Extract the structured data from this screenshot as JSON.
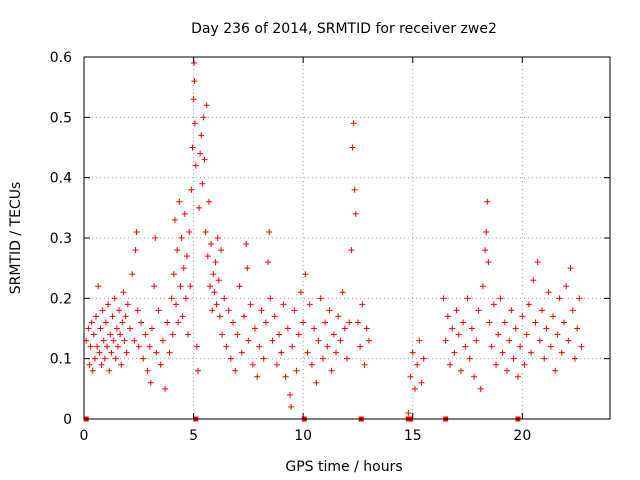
{
  "chart_data": {
    "type": "scatter",
    "title": "Day 236 of 2014, SRMTID for receiver zwe2",
    "xlabel": "GPS time / hours",
    "ylabel": "SRMTID / TECUs",
    "xlim": [
      0,
      24
    ],
    "ylim": [
      0,
      0.6
    ],
    "xticks": [
      0,
      5,
      10,
      15,
      20
    ],
    "xtick_labels": [
      "0",
      "5",
      "10",
      "15",
      "20"
    ],
    "yticks": [
      0,
      0.1,
      0.2,
      0.3,
      0.4,
      0.5,
      0.6
    ],
    "ytick_labels": [
      "0",
      "0.1",
      "0.2",
      "0.3",
      "0.4",
      "0.5",
      "0.6"
    ],
    "grid": true,
    "marker": "+",
    "color": "#ff0000",
    "series": [
      {
        "name": "SRMTID",
        "points": [
          [
            0.1,
            0.13
          ],
          [
            0.2,
            0.15
          ],
          [
            0.25,
            0.09
          ],
          [
            0.3,
            0.12
          ],
          [
            0.35,
            0.16
          ],
          [
            0.4,
            0.08
          ],
          [
            0.45,
            0.14
          ],
          [
            0.5,
            0.1
          ],
          [
            0.55,
            0.17
          ],
          [
            0.6,
            0.12
          ],
          [
            0.65,
            0.22
          ],
          [
            0.7,
            0.11
          ],
          [
            0.75,
            0.15
          ],
          [
            0.8,
            0.09
          ],
          [
            0.85,
            0.18
          ],
          [
            0.9,
            0.13
          ],
          [
            0.95,
            0.1
          ],
          [
            1.0,
            0.16
          ],
          [
            1.05,
            0.12
          ],
          [
            1.1,
            0.19
          ],
          [
            1.15,
            0.08
          ],
          [
            1.2,
            0.14
          ],
          [
            1.25,
            0.11
          ],
          [
            1.3,
            0.17
          ],
          [
            1.35,
            0.13
          ],
          [
            1.4,
            0.2
          ],
          [
            1.45,
            0.1
          ],
          [
            1.5,
            0.15
          ],
          [
            1.55,
            0.12
          ],
          [
            1.6,
            0.18
          ],
          [
            1.65,
            0.14
          ],
          [
            1.7,
            0.09
          ],
          [
            1.75,
            0.16
          ],
          [
            1.8,
            0.21
          ],
          [
            1.85,
            0.13
          ],
          [
            1.9,
            0.17
          ],
          [
            1.95,
            0.11
          ],
          [
            2.0,
            0.19
          ],
          [
            2.1,
            0.15
          ],
          [
            2.2,
            0.24
          ],
          [
            2.3,
            0.13
          ],
          [
            2.35,
            0.28
          ],
          [
            2.4,
            0.31
          ],
          [
            2.45,
            0.18
          ],
          [
            2.5,
            0.12
          ],
          [
            2.6,
            0.16
          ],
          [
            2.7,
            0.1
          ],
          [
            2.8,
            0.14
          ],
          [
            2.9,
            0.08
          ],
          [
            3.0,
            0.12
          ],
          [
            3.05,
            0.06
          ],
          [
            3.1,
            0.15
          ],
          [
            3.2,
            0.22
          ],
          [
            3.25,
            0.3
          ],
          [
            3.3,
            0.11
          ],
          [
            3.4,
            0.18
          ],
          [
            3.5,
            0.09
          ],
          [
            3.6,
            0.13
          ],
          [
            3.7,
            0.05
          ],
          [
            3.8,
            0.16
          ],
          [
            3.9,
            0.11
          ],
          [
            4.0,
            0.2
          ],
          [
            4.05,
            0.14
          ],
          [
            4.1,
            0.24
          ],
          [
            4.15,
            0.33
          ],
          [
            4.2,
            0.19
          ],
          [
            4.25,
            0.28
          ],
          [
            4.3,
            0.16
          ],
          [
            4.35,
            0.36
          ],
          [
            4.4,
            0.22
          ],
          [
            4.45,
            0.3
          ],
          [
            4.5,
            0.17
          ],
          [
            4.55,
            0.25
          ],
          [
            4.6,
            0.34
          ],
          [
            4.65,
            0.2
          ],
          [
            4.7,
            0.27
          ],
          [
            4.75,
            0.14
          ],
          [
            4.8,
            0.31
          ],
          [
            4.85,
            0.22
          ],
          [
            4.9,
            0.38
          ],
          [
            4.95,
            0.45
          ],
          [
            5.0,
            0.53
          ],
          [
            5.02,
            0.59
          ],
          [
            5.04,
            0.56
          ],
          [
            5.06,
            0.49
          ],
          [
            5.1,
            0.42
          ],
          [
            5.15,
            0.12
          ],
          [
            5.2,
            0.08
          ],
          [
            5.25,
            0.35
          ],
          [
            5.3,
            0.44
          ],
          [
            5.35,
            0.47
          ],
          [
            5.4,
            0.39
          ],
          [
            5.45,
            0.5
          ],
          [
            5.5,
            0.43
          ],
          [
            5.55,
            0.31
          ],
          [
            5.6,
            0.52
          ],
          [
            5.65,
            0.27
          ],
          [
            5.7,
            0.36
          ],
          [
            5.75,
            0.22
          ],
          [
            5.8,
            0.29
          ],
          [
            5.85,
            0.18
          ],
          [
            5.9,
            0.24
          ],
          [
            5.95,
            0.21
          ],
          [
            6.0,
            0.26
          ],
          [
            6.05,
            0.19
          ],
          [
            6.1,
            0.3
          ],
          [
            6.15,
            0.23
          ],
          [
            6.2,
            0.17
          ],
          [
            6.25,
            0.28
          ],
          [
            6.3,
            0.14
          ],
          [
            6.4,
            0.2
          ],
          [
            6.5,
            0.12
          ],
          [
            6.6,
            0.18
          ],
          [
            6.7,
            0.1
          ],
          [
            6.8,
            0.16
          ],
          [
            6.9,
            0.08
          ],
          [
            7.0,
            0.14
          ],
          [
            7.1,
            0.22
          ],
          [
            7.2,
            0.11
          ],
          [
            7.3,
            0.17
          ],
          [
            7.4,
            0.29
          ],
          [
            7.45,
            0.25
          ],
          [
            7.5,
            0.13
          ],
          [
            7.6,
            0.19
          ],
          [
            7.7,
            0.09
          ],
          [
            7.8,
            0.15
          ],
          [
            7.9,
            0.07
          ],
          [
            8.0,
            0.12
          ],
          [
            8.1,
            0.18
          ],
          [
            8.2,
            0.1
          ],
          [
            8.3,
            0.16
          ],
          [
            8.4,
            0.26
          ],
          [
            8.45,
            0.31
          ],
          [
            8.5,
            0.2
          ],
          [
            8.6,
            0.13
          ],
          [
            8.7,
            0.17
          ],
          [
            8.8,
            0.09
          ],
          [
            8.9,
            0.14
          ],
          [
            9.0,
            0.11
          ],
          [
            9.1,
            0.19
          ],
          [
            9.2,
            0.07
          ],
          [
            9.3,
            0.15
          ],
          [
            9.4,
            0.04
          ],
          [
            9.45,
            0.02
          ],
          [
            9.5,
            0.12
          ],
          [
            9.6,
            0.18
          ],
          [
            9.7,
            0.08
          ],
          [
            9.8,
            0.14
          ],
          [
            9.9,
            0.21
          ],
          [
            10.0,
            0.16
          ],
          [
            10.1,
            0.24
          ],
          [
            10.2,
            0.11
          ],
          [
            10.3,
            0.19
          ],
          [
            10.4,
            0.09
          ],
          [
            10.5,
            0.15
          ],
          [
            10.6,
            0.06
          ],
          [
            10.7,
            0.13
          ],
          [
            10.8,
            0.2
          ],
          [
            10.9,
            0.1
          ],
          [
            11.0,
            0.16
          ],
          [
            11.1,
            0.12
          ],
          [
            11.2,
            0.18
          ],
          [
            11.3,
            0.08
          ],
          [
            11.4,
            0.14
          ],
          [
            11.5,
            0.11
          ],
          [
            11.6,
            0.17
          ],
          [
            11.7,
            0.13
          ],
          [
            11.8,
            0.21
          ],
          [
            11.9,
            0.15
          ],
          [
            12.0,
            0.1
          ],
          [
            12.1,
            0.16
          ],
          [
            12.2,
            0.28
          ],
          [
            12.25,
            0.45
          ],
          [
            12.3,
            0.49
          ],
          [
            12.35,
            0.38
          ],
          [
            12.4,
            0.34
          ],
          [
            12.5,
            0.16
          ],
          [
            12.6,
            0.12
          ],
          [
            12.7,
            0.19
          ],
          [
            12.8,
            0.09
          ],
          [
            12.9,
            0.15
          ],
          [
            13.0,
            0.13
          ],
          [
            14.8,
            0.01
          ],
          [
            14.9,
            0.07
          ],
          [
            15.0,
            0.11
          ],
          [
            15.1,
            0.05
          ],
          [
            15.2,
            0.09
          ],
          [
            15.3,
            0.13
          ],
          [
            15.4,
            0.06
          ],
          [
            15.5,
            0.1
          ],
          [
            16.4,
            0.2
          ],
          [
            16.5,
            0.13
          ],
          [
            16.6,
            0.17
          ],
          [
            16.7,
            0.09
          ],
          [
            16.8,
            0.15
          ],
          [
            16.9,
            0.11
          ],
          [
            17.0,
            0.18
          ],
          [
            17.1,
            0.14
          ],
          [
            17.2,
            0.08
          ],
          [
            17.3,
            0.16
          ],
          [
            17.4,
            0.12
          ],
          [
            17.5,
            0.2
          ],
          [
            17.6,
            0.1
          ],
          [
            17.7,
            0.15
          ],
          [
            17.8,
            0.07
          ],
          [
            17.9,
            0.13
          ],
          [
            18.0,
            0.18
          ],
          [
            18.1,
            0.05
          ],
          [
            18.2,
            0.22
          ],
          [
            18.3,
            0.28
          ],
          [
            18.35,
            0.31
          ],
          [
            18.4,
            0.36
          ],
          [
            18.45,
            0.26
          ],
          [
            18.5,
            0.16
          ],
          [
            18.6,
            0.12
          ],
          [
            18.7,
            0.19
          ],
          [
            18.8,
            0.09
          ],
          [
            18.9,
            0.14
          ],
          [
            19.0,
            0.2
          ],
          [
            19.1,
            0.11
          ],
          [
            19.2,
            0.16
          ],
          [
            19.3,
            0.08
          ],
          [
            19.4,
            0.13
          ],
          [
            19.5,
            0.18
          ],
          [
            19.6,
            0.1
          ],
          [
            19.7,
            0.15
          ],
          [
            19.8,
            0.07
          ],
          [
            19.9,
            0.12
          ],
          [
            20.0,
            0.17
          ],
          [
            20.1,
            0.09
          ],
          [
            20.2,
            0.14
          ],
          [
            20.3,
            0.19
          ],
          [
            20.4,
            0.11
          ],
          [
            20.5,
            0.23
          ],
          [
            20.6,
            0.16
          ],
          [
            20.7,
            0.26
          ],
          [
            20.8,
            0.13
          ],
          [
            20.9,
            0.18
          ],
          [
            21.0,
            0.1
          ],
          [
            21.1,
            0.15
          ],
          [
            21.2,
            0.21
          ],
          [
            21.3,
            0.12
          ],
          [
            21.4,
            0.17
          ],
          [
            21.5,
            0.08
          ],
          [
            21.6,
            0.14
          ],
          [
            21.7,
            0.2
          ],
          [
            21.8,
            0.11
          ],
          [
            21.9,
            0.16
          ],
          [
            22.0,
            0.22
          ],
          [
            22.1,
            0.13
          ],
          [
            22.2,
            0.25
          ],
          [
            22.3,
            0.18
          ],
          [
            22.4,
            0.1
          ],
          [
            22.5,
            0.15
          ],
          [
            22.6,
            0.2
          ],
          [
            22.7,
            0.12
          ]
        ]
      }
    ],
    "zero_markers": [
      0.1,
      5.1,
      10.05,
      12.65,
      14.8,
      14.85,
      14.9,
      16.5,
      19.8
    ]
  }
}
